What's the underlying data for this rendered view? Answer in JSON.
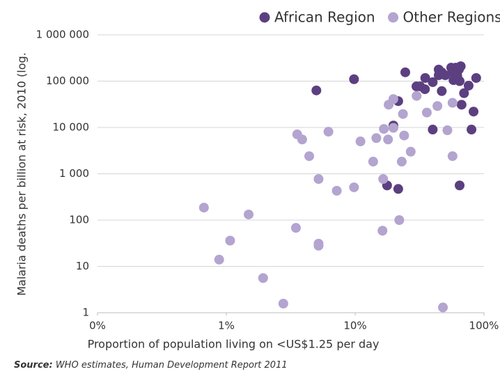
{
  "chart_data": {
    "type": "scatter",
    "xlabel": "Proportion of population living on <US$1.25 per day",
    "ylabel": "Malaria deaths per billion at risk, 2010 (log.",
    "source": {
      "label": "Source:",
      "text": "WHO estimates, Human Development Report 2011"
    },
    "xscale": "log",
    "yscale": "log",
    "grid": true,
    "legend": "top-right",
    "xlim": [
      0.1,
      100
    ],
    "xticks": [
      {
        "value": 0.1,
        "label": "0%"
      },
      {
        "value": 1,
        "label": "1%"
      },
      {
        "value": 10,
        "label": "10%"
      },
      {
        "value": 100,
        "label": "100%"
      }
    ],
    "ylim": [
      1,
      1000000
    ],
    "yticks": [
      {
        "value": 1,
        "label": "1"
      },
      {
        "value": 10,
        "label": "10"
      },
      {
        "value": 100,
        "label": "100"
      },
      {
        "value": 1000,
        "label": "1 000"
      },
      {
        "value": 10000,
        "label": "10 000"
      },
      {
        "value": 100000,
        "label": "100 000"
      },
      {
        "value": 1000000,
        "label": "1 000 000"
      }
    ],
    "series": [
      {
        "name": "African Region",
        "color": "#5c3f80",
        "x": [
          5.0,
          9.8,
          24.5,
          21.6,
          19.8,
          17.7,
          21.6,
          29.9,
          32,
          34.8,
          35,
          40,
          40,
          44.5,
          44.5,
          47,
          47,
          50,
          55.7,
          57,
          58,
          60.5,
          62,
          66,
          64,
          62,
          64.7,
          67,
          70,
          64.7,
          76,
          80,
          83,
          87
        ],
        "values": [
          63000,
          110000,
          155000,
          37000,
          11000,
          560,
          470,
          77000,
          77000,
          67000,
          117000,
          95000,
          9000,
          178000,
          134000,
          155000,
          61000,
          134000,
          196000,
          155000,
          105000,
          196000,
          160000,
          210000,
          180000,
          130000,
          560,
          31000,
          55000,
          100000,
          80000,
          9000,
          22000,
          117000
        ]
      },
      {
        "name": "Other Regions",
        "color": "#b3a4d0",
        "x": [
          0.67,
          0.88,
          1.07,
          1.49,
          1.93,
          2.77,
          3.47,
          3.55,
          3.88,
          4.4,
          5.2,
          5.2,
          5.2,
          6.2,
          7.2,
          9.8,
          11,
          13.8,
          14.6,
          16.3,
          16.5,
          16.7,
          18,
          18.2,
          19.8,
          19.8,
          22,
          23,
          23.5,
          24,
          27,
          30,
          36,
          43.5,
          48,
          52,
          57,
          57
        ],
        "values": [
          186,
          14,
          36,
          132,
          5.6,
          1.57,
          68,
          7100,
          5500,
          2400,
          770,
          31,
          28,
          8100,
          430,
          510,
          5000,
          1830,
          5900,
          59,
          770,
          9300,
          5500,
          31000,
          41000,
          9800,
          100,
          1830,
          19500,
          6700,
          3000,
          48000,
          21000,
          29000,
          1.3,
          8700,
          2400,
          34000
        ]
      }
    ]
  }
}
